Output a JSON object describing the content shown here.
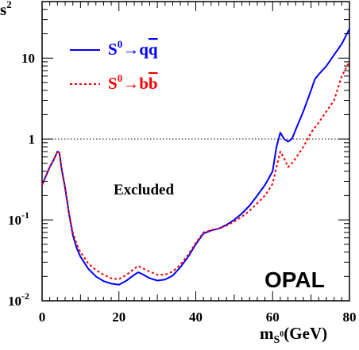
{
  "chart_data": {
    "type": "line",
    "ylabel": "s",
    "ylabel_sup": "2",
    "xlabel": "m",
    "xlabel_sub": "S",
    "xlabel_subsup": "0",
    "xlabel_unit": "(GeV)",
    "x_range": [
      0,
      80
    ],
    "y_range": [
      0.01,
      50
    ],
    "y_scale": "log",
    "x_ticks": [
      "0",
      "20",
      "40",
      "60",
      "80"
    ],
    "y_ticks": [
      {
        "value": 10,
        "base": "10",
        "exp": ""
      },
      {
        "value": 1,
        "base": "1",
        "exp": ""
      },
      {
        "value": 0.1,
        "base": "10",
        "exp": "-1"
      },
      {
        "value": 0.01,
        "base": "10",
        "exp": "-2"
      }
    ],
    "reference_line": {
      "y": 1,
      "style": "dotted"
    },
    "annotations": [
      "Excluded",
      "OPAL"
    ],
    "legend_placement": "top-left",
    "series": [
      {
        "name": "S0→qq̄",
        "color": "#0000ff",
        "dash": "solid",
        "points": [
          [
            0,
            0.27
          ],
          [
            1,
            0.35
          ],
          [
            2,
            0.45
          ],
          [
            3,
            0.55
          ],
          [
            4,
            0.7
          ],
          [
            4.5,
            0.68
          ],
          [
            5,
            0.45
          ],
          [
            6,
            0.25
          ],
          [
            7,
            0.12
          ],
          [
            8,
            0.065
          ],
          [
            9,
            0.045
          ],
          [
            10,
            0.035
          ],
          [
            12,
            0.025
          ],
          [
            14,
            0.02
          ],
          [
            16,
            0.0175
          ],
          [
            18,
            0.0163
          ],
          [
            20,
            0.0158
          ],
          [
            22,
            0.0178
          ],
          [
            24,
            0.021
          ],
          [
            25,
            0.0225
          ],
          [
            26,
            0.0215
          ],
          [
            28,
            0.019
          ],
          [
            30,
            0.0178
          ],
          [
            32,
            0.0183
          ],
          [
            34,
            0.0205
          ],
          [
            36,
            0.026
          ],
          [
            38,
            0.035
          ],
          [
            40,
            0.05
          ],
          [
            42,
            0.068
          ],
          [
            44,
            0.074
          ],
          [
            46,
            0.078
          ],
          [
            48,
            0.087
          ],
          [
            50,
            0.1
          ],
          [
            52,
            0.12
          ],
          [
            54,
            0.15
          ],
          [
            56,
            0.2
          ],
          [
            58,
            0.27
          ],
          [
            60,
            0.4
          ],
          [
            61,
            0.8
          ],
          [
            62,
            1.2
          ],
          [
            63,
            1.0
          ],
          [
            64,
            0.93
          ],
          [
            65,
            1.0
          ],
          [
            66,
            1.3
          ],
          [
            68,
            2.2
          ],
          [
            70,
            4.0
          ],
          [
            71,
            5.5
          ],
          [
            72,
            6.3
          ],
          [
            74,
            8.0
          ],
          [
            76,
            11
          ],
          [
            78,
            15
          ],
          [
            80,
            23
          ]
        ]
      },
      {
        "name": "S0→bb̄",
        "color": "#ff0000",
        "dash": "dotted",
        "points": [
          [
            0,
            0.27
          ],
          [
            1,
            0.35
          ],
          [
            2,
            0.45
          ],
          [
            3,
            0.55
          ],
          [
            4,
            0.7
          ],
          [
            4.5,
            0.68
          ],
          [
            5,
            0.45
          ],
          [
            6,
            0.24
          ],
          [
            7,
            0.12
          ],
          [
            8,
            0.07
          ],
          [
            9,
            0.05
          ],
          [
            10,
            0.04
          ],
          [
            12,
            0.029
          ],
          [
            14,
            0.024
          ],
          [
            16,
            0.021
          ],
          [
            18,
            0.019
          ],
          [
            20,
            0.0185
          ],
          [
            22,
            0.021
          ],
          [
            24,
            0.025
          ],
          [
            25,
            0.027
          ],
          [
            26,
            0.0255
          ],
          [
            28,
            0.023
          ],
          [
            30,
            0.021
          ],
          [
            32,
            0.021
          ],
          [
            34,
            0.023
          ],
          [
            36,
            0.028
          ],
          [
            38,
            0.037
          ],
          [
            40,
            0.052
          ],
          [
            42,
            0.07
          ],
          [
            44,
            0.075
          ],
          [
            46,
            0.078
          ],
          [
            48,
            0.085
          ],
          [
            50,
            0.095
          ],
          [
            52,
            0.11
          ],
          [
            54,
            0.13
          ],
          [
            56,
            0.16
          ],
          [
            58,
            0.2
          ],
          [
            60,
            0.28
          ],
          [
            61,
            0.45
          ],
          [
            62,
            0.7
          ],
          [
            63,
            0.58
          ],
          [
            64,
            0.45
          ],
          [
            65,
            0.5
          ],
          [
            66,
            0.58
          ],
          [
            68,
            0.8
          ],
          [
            70,
            1.2
          ],
          [
            72,
            1.6
          ],
          [
            74,
            2.2
          ],
          [
            76,
            3.0
          ],
          [
            78,
            6.0
          ],
          [
            80,
            9.0
          ]
        ]
      }
    ]
  },
  "legend": [
    {
      "sym": "S",
      "sup": "0",
      "arrow": "→",
      "part": "q",
      "bar": "q",
      "color": "#0000ff"
    },
    {
      "sym": "S",
      "sup": "0",
      "arrow": "→",
      "part": "b",
      "bar": "b",
      "color": "#ff0000"
    }
  ]
}
